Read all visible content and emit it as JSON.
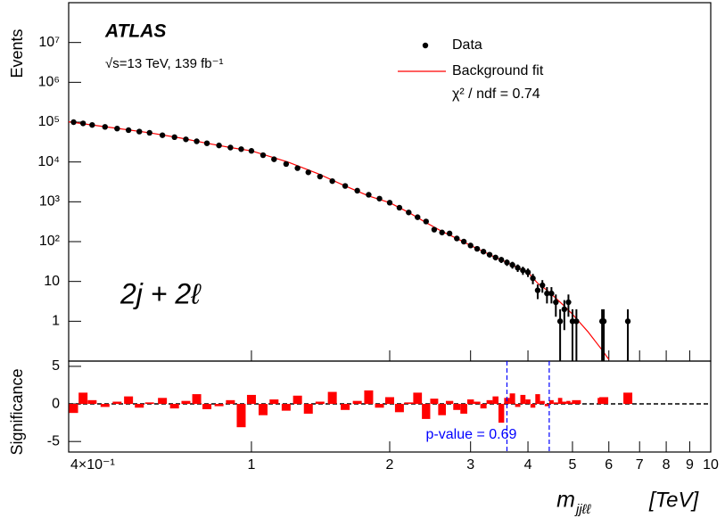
{
  "chart_data": {
    "type": "scatter",
    "experiment": "ATLAS",
    "energy_label": "√s=13 TeV,  139 fb⁻¹",
    "channel_label": "2j + 2ℓ",
    "y_label": "Events",
    "x_label": {
      "symbol": "m",
      "subscript": "jjℓℓ",
      "unit": "[TeV]"
    },
    "xscale": "log",
    "yscale": "log",
    "xlim": [
      0.4,
      10
    ],
    "ylim": [
      0.1,
      100000000
    ],
    "xticks": [
      {
        "value": 0.4,
        "label": "4×10⁻¹"
      },
      1,
      2,
      3,
      4,
      5,
      6,
      7,
      8,
      9,
      10
    ],
    "yticks": [
      1,
      10,
      {
        "value": 100,
        "label": "10²"
      },
      {
        "value": 1000,
        "label": "10³"
      },
      {
        "value": 10000,
        "label": "10⁴"
      },
      {
        "value": 100000,
        "label": "10⁵"
      },
      {
        "value": 1000000,
        "label": "10⁶"
      },
      {
        "value": 10000000,
        "label": "10⁷"
      }
    ],
    "legend": "upper right",
    "legend_note": "χ² / ndf = 0.74",
    "series": [
      {
        "name": "Data",
        "color": "#000000",
        "x": [
          0.41,
          0.43,
          0.45,
          0.48,
          0.51,
          0.54,
          0.57,
          0.6,
          0.64,
          0.68,
          0.72,
          0.76,
          0.8,
          0.85,
          0.9,
          0.95,
          1.0,
          1.06,
          1.12,
          1.19,
          1.26,
          1.33,
          1.41,
          1.5,
          1.6,
          1.7,
          1.8,
          1.9,
          2.0,
          2.1,
          2.2,
          2.3,
          2.4,
          2.5,
          2.6,
          2.7,
          2.8,
          2.9,
          3.0,
          3.1,
          3.2,
          3.3,
          3.4,
          3.5,
          3.6,
          3.7,
          3.8,
          3.9,
          4.0,
          4.1,
          4.2,
          4.3,
          4.4,
          4.5,
          4.6,
          4.7,
          4.8,
          4.9,
          5.0,
          5.1,
          5.8,
          5.85,
          6.6
        ],
        "values": [
          100000,
          93000,
          85000,
          76000,
          69000,
          63000,
          58000,
          54000,
          47000,
          42000,
          37000,
          33000,
          29500,
          26000,
          23000,
          21000,
          19000,
          14800,
          11700,
          8900,
          7000,
          5500,
          4300,
          3300,
          2500,
          1900,
          1500,
          1200,
          950,
          710,
          540,
          410,
          320,
          200,
          170,
          160,
          120,
          100,
          80,
          66,
          56,
          47,
          40,
          35,
          30,
          26,
          22,
          19,
          17,
          12,
          6,
          8,
          5,
          5,
          3,
          1,
          2,
          3,
          1,
          1,
          1,
          1,
          1
        ],
        "errors": [
          316,
          305,
          292,
          276,
          263,
          251,
          241,
          232,
          217,
          205,
          192,
          182,
          172,
          161,
          152,
          145,
          138,
          122,
          108,
          94,
          84,
          74,
          66,
          57,
          50,
          44,
          39,
          35,
          31,
          27,
          23,
          20,
          18,
          14,
          13,
          13,
          11,
          10,
          9,
          8,
          7.5,
          6.9,
          6.3,
          5.9,
          5.5,
          5.1,
          4.7,
          4.4,
          4.1,
          3.5,
          2.4,
          2.8,
          2.2,
          2.2,
          1.7,
          1,
          1.4,
          1.7,
          1,
          1,
          1,
          1,
          1
        ]
      },
      {
        "name": "Background fit",
        "color": "#ff0000",
        "x": [
          0.4,
          0.5,
          0.6,
          0.7,
          0.8,
          0.9,
          1.0,
          1.2,
          1.4,
          1.6,
          1.8,
          2.0,
          2.2,
          2.4,
          2.6,
          2.8,
          3.0,
          3.2,
          3.4,
          3.6,
          3.8,
          4.0,
          4.2,
          4.4,
          4.6,
          4.8,
          5.0,
          5.2,
          5.4,
          5.6,
          5.8,
          6.0
        ],
        "values": [
          102000,
          72000,
          54000,
          40000,
          29500,
          23000,
          19000,
          10000,
          5000,
          2500,
          1400,
          950,
          540,
          300,
          180,
          120,
          80,
          56,
          40,
          30,
          22,
          17,
          9,
          6,
          3.8,
          2.4,
          1.5,
          0.9,
          0.55,
          0.32,
          0.19,
          0.11
        ]
      }
    ],
    "significance": {
      "y_label": "Significance",
      "color": "#ff0000",
      "ylim": [
        -6.4,
        5.7
      ],
      "yticks": [
        -5,
        0,
        5
      ],
      "values": [
        -1.2,
        1.5,
        0.5,
        -0.4,
        0.3,
        1.0,
        -0.5,
        0.2,
        0.8,
        -0.6,
        0.4,
        1.3,
        -0.7,
        -0.3,
        0.5,
        -3.1,
        1.2,
        -1.5,
        0.6,
        -0.9,
        1.1,
        -1.3,
        0.3,
        1.6,
        -0.8,
        0.4,
        1.8,
        -0.5,
        0.9,
        -1.1,
        0.2,
        1.5,
        -2.0,
        0.7,
        -1.5,
        0.4,
        -0.8,
        -1.3,
        0.6,
        0.3,
        -0.6,
        0.5,
        1.0,
        -2.5,
        0.8,
        1.4,
        -0.4,
        1.2,
        0.6,
        -0.5,
        1.3,
        0.4,
        -0.3,
        0.5,
        0.2,
        0.8,
        0.3,
        0.4,
        0.2,
        0.5,
        0.8,
        0.9,
        1.5
      ]
    },
    "window": {
      "x": [
        3.6,
        4.45
      ],
      "color": "#0000ff",
      "label": "p-value = 0.69"
    }
  }
}
